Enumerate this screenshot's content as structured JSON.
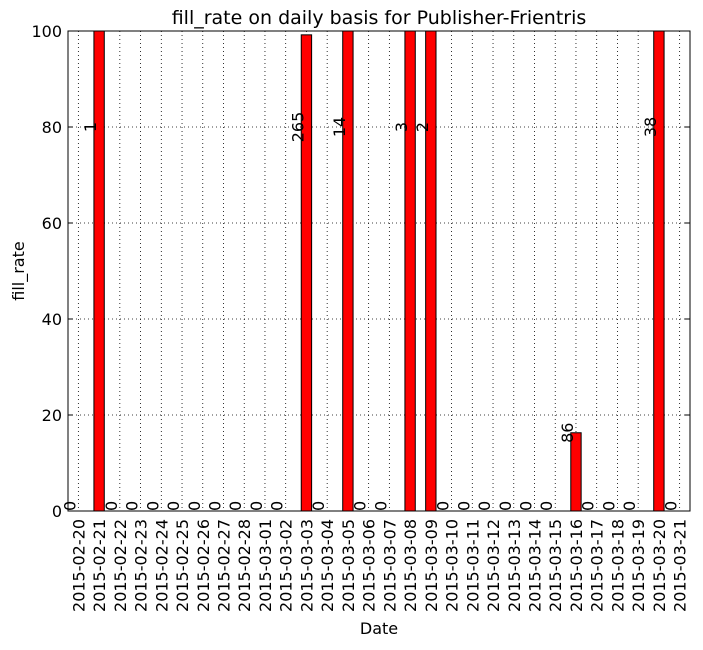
{
  "chart_data": {
    "type": "bar",
    "title": "fill_rate on daily basis for Publisher-Frientris",
    "xlabel": "Date",
    "ylabel": "fill_rate",
    "categories": [
      "2015-02-20",
      "2015-02-21",
      "2015-02-22",
      "2015-02-23",
      "2015-02-24",
      "2015-02-25",
      "2015-02-26",
      "2015-02-27",
      "2015-02-28",
      "2015-03-01",
      "2015-03-02",
      "2015-03-03",
      "2015-03-04",
      "2015-03-05",
      "2015-03-06",
      "2015-03-07",
      "2015-03-08",
      "2015-03-09",
      "2015-03-10",
      "2015-03-11",
      "2015-03-12",
      "2015-03-13",
      "2015-03-14",
      "2015-03-15",
      "2015-03-16",
      "2015-03-17",
      "2015-03-18",
      "2015-03-19",
      "2015-03-20",
      "2015-03-21"
    ],
    "values": [
      0,
      100,
      0,
      0,
      0,
      0,
      0,
      0,
      0,
      0,
      0,
      99.2,
      0,
      100,
      0,
      0,
      100,
      100,
      0,
      0,
      0,
      0,
      0,
      0,
      16.3,
      0,
      0,
      0,
      100,
      0
    ],
    "annotations": [
      "0",
      "1",
      "0",
      "0",
      "0",
      "0",
      "0",
      "0",
      "0",
      "0",
      "0",
      "265",
      "0",
      "14",
      "0",
      "0",
      "3",
      "2",
      "0",
      "0",
      "0",
      "0",
      "0",
      "0",
      "86",
      "0",
      "0",
      "0",
      "38",
      "0"
    ],
    "color": "#ff0000",
    "ylim": [
      0,
      100
    ],
    "yticks": [
      0,
      20,
      40,
      60,
      80,
      100
    ],
    "grid": true
  }
}
